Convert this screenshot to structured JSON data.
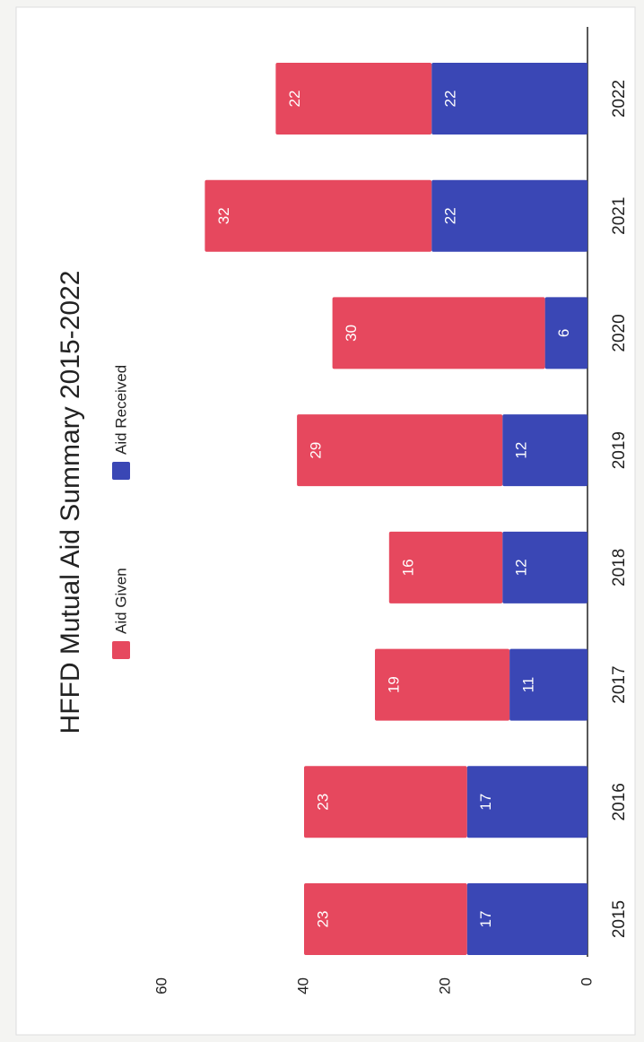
{
  "chart_data": {
    "type": "stacked_bar",
    "title": "HFFD Mutual Aid Summary 2015-2022",
    "categories": [
      "2015",
      "2016",
      "2017",
      "2018",
      "2019",
      "2020",
      "2021",
      "2022"
    ],
    "series": [
      {
        "name": "Aid Received",
        "color": "#3a47b5",
        "values": [
          17,
          17,
          11,
          12,
          12,
          6,
          22,
          22
        ]
      },
      {
        "name": "Aid Given",
        "color": "#e6485e",
        "values": [
          23,
          23,
          19,
          16,
          29,
          30,
          32,
          22
        ]
      }
    ],
    "ylim": [
      0,
      60
    ],
    "yticks": [
      0,
      20,
      40,
      60
    ],
    "grid": false,
    "legend": "top"
  }
}
